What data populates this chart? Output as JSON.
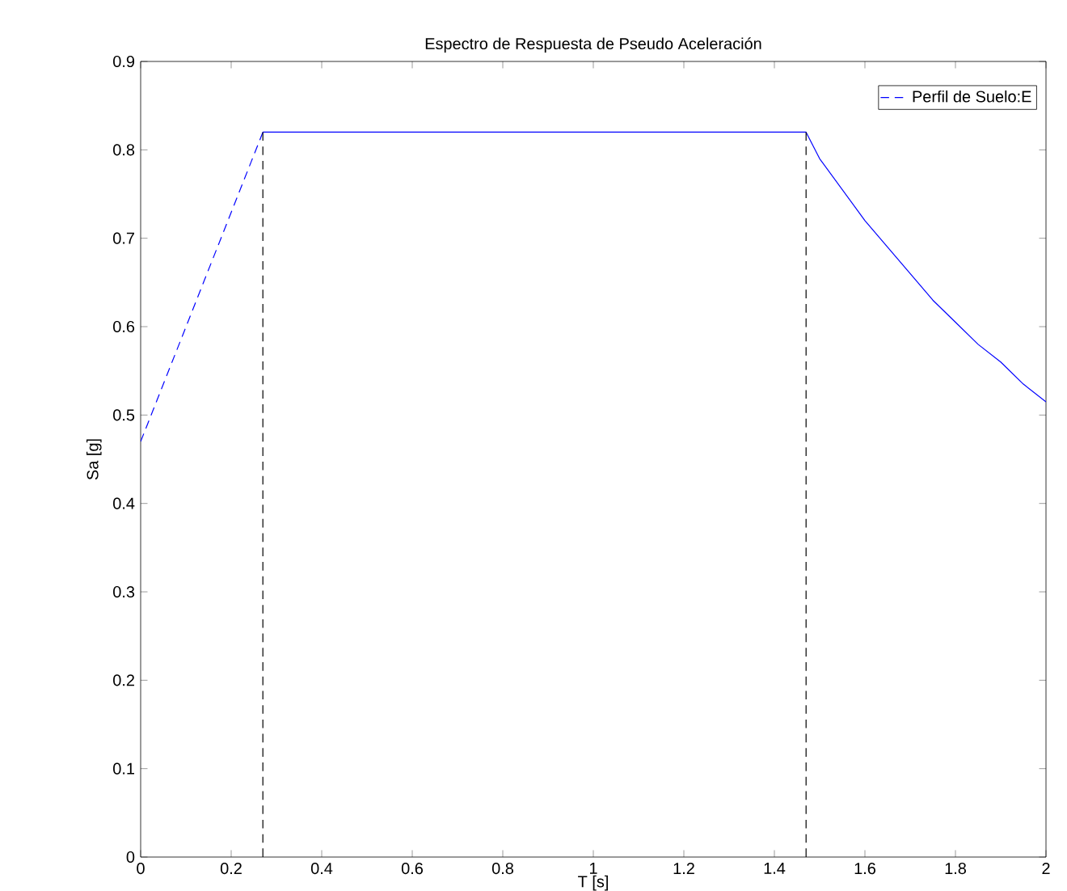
{
  "chart_data": {
    "type": "line",
    "title": "Espectro de Respuesta de Pseudo Aceleración",
    "xlabel": "T [s]",
    "ylabel": "Sa [g]",
    "xlim": [
      0,
      2
    ],
    "ylim": [
      0,
      0.9
    ],
    "xticks": [
      0,
      0.2,
      0.4,
      0.6,
      0.8,
      1,
      1.2,
      1.4,
      1.6,
      1.8,
      2
    ],
    "yticks": [
      0,
      0.1,
      0.2,
      0.3,
      0.4,
      0.5,
      0.6,
      0.7,
      0.8,
      0.9
    ],
    "legend": "top right",
    "grid": false,
    "marker": "none",
    "series": [
      {
        "name": "Perfil de Suelo:E",
        "color": "#0000ff",
        "line_style": "dashed",
        "x": [
          0,
          0.27
        ],
        "values": [
          0.47,
          0.82
        ]
      },
      {
        "color": "#0000ff",
        "line_style": "solid",
        "x": [
          0.27,
          1.47,
          1.5,
          1.55,
          1.6,
          1.65,
          1.7,
          1.75,
          1.8,
          1.85,
          1.9,
          1.95,
          2
        ],
        "values": [
          0.82,
          0.82,
          0.79,
          0.755,
          0.72,
          0.69,
          0.66,
          0.63,
          0.605,
          0.58,
          0.56,
          0.535,
          0.515
        ]
      },
      {
        "color": "#000000",
        "line_style": "dashed",
        "x": [
          0.27,
          0.27
        ],
        "values": [
          0,
          0.82
        ]
      },
      {
        "color": "#000000",
        "line_style": "dashed",
        "x": [
          1.47,
          1.47
        ],
        "values": [
          0,
          0.82
        ]
      }
    ]
  }
}
